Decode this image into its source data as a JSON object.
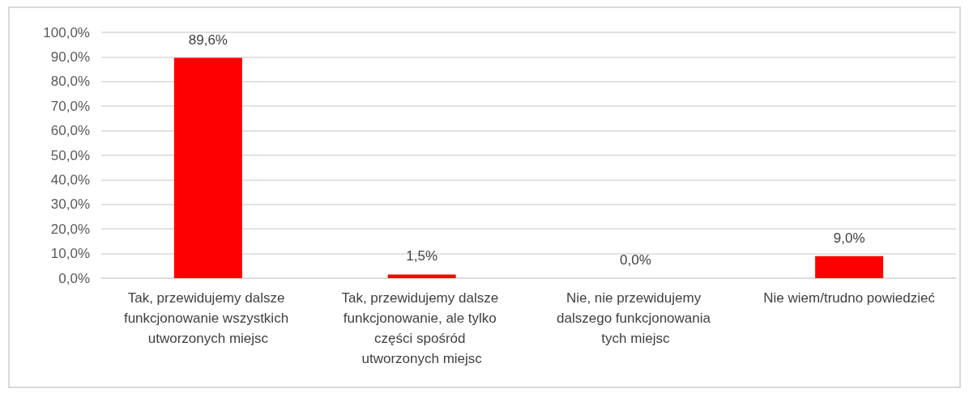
{
  "chart_data": {
    "type": "bar",
    "categories": [
      "Tak, przewidujemy dalsze funkcjonowanie wszystkich utworzonych miejsc",
      "Tak, przewidujemy dalsze funkcjonowanie, ale tylko części spośród utworzonych miejsc",
      "Nie, nie przewidujemy dalszego funkcjonowania tych miejsc",
      "Nie wiem/trudno powiedzieć"
    ],
    "values": [
      89.6,
      1.5,
      0.0,
      9.0
    ],
    "value_labels": [
      "89,6%",
      "1,5%",
      "0,0%",
      "9,0%"
    ],
    "color": "#ff0000",
    "ylim": [
      0,
      100
    ],
    "yticks": [
      {
        "value": 0,
        "label": "0,0%"
      },
      {
        "value": 10,
        "label": "10,0%"
      },
      {
        "value": 20,
        "label": "20,0%"
      },
      {
        "value": 30,
        "label": "30,0%"
      },
      {
        "value": 40,
        "label": "40,0%"
      },
      {
        "value": 50,
        "label": "50,0%"
      },
      {
        "value": 60,
        "label": "60,0%"
      },
      {
        "value": 70,
        "label": "70,0%"
      },
      {
        "value": 80,
        "label": "80,0%"
      },
      {
        "value": 90,
        "label": "90,0%"
      },
      {
        "value": 100,
        "label": "100,0%"
      }
    ],
    "grid": true
  }
}
